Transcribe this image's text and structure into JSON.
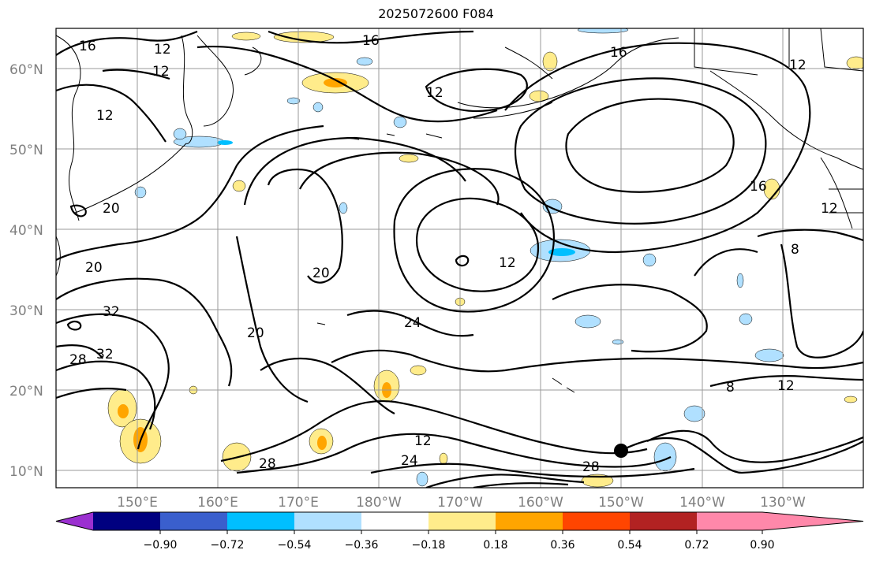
{
  "title": "2025072600 F084",
  "lat_labels": [
    "60°N",
    "50°N",
    "40°N",
    "30°N",
    "20°N",
    "10°N"
  ],
  "lon_labels": [
    "150°E",
    "160°E",
    "170°E",
    "180°W",
    "170°W",
    "160°W",
    "150°W",
    "140°W",
    "130°W"
  ],
  "colorbar": {
    "tick_labels": [
      "−0.90",
      "−0.72",
      "−0.54",
      "−0.36",
      "−0.18",
      "0.18",
      "0.36",
      "0.54",
      "0.72",
      "0.90"
    ],
    "colors": [
      "#9b30d0",
      "#000080",
      "#3a5fcd",
      "#00bfff",
      "#b0e0ff",
      "#ffffff",
      "#ffec8b",
      "#ffa500",
      "#ff4500",
      "#b22222",
      "#ff88aa"
    ]
  },
  "contour_labels": [
    "16",
    "12",
    "16",
    "12",
    "12",
    "16",
    "12",
    "12",
    "20",
    "20",
    "20",
    "32",
    "32",
    "28",
    "20",
    "24",
    "12",
    "16",
    "12",
    "8",
    "12",
    "8",
    "12",
    "24",
    "28",
    "28"
  ],
  "marker": "storm-position"
}
